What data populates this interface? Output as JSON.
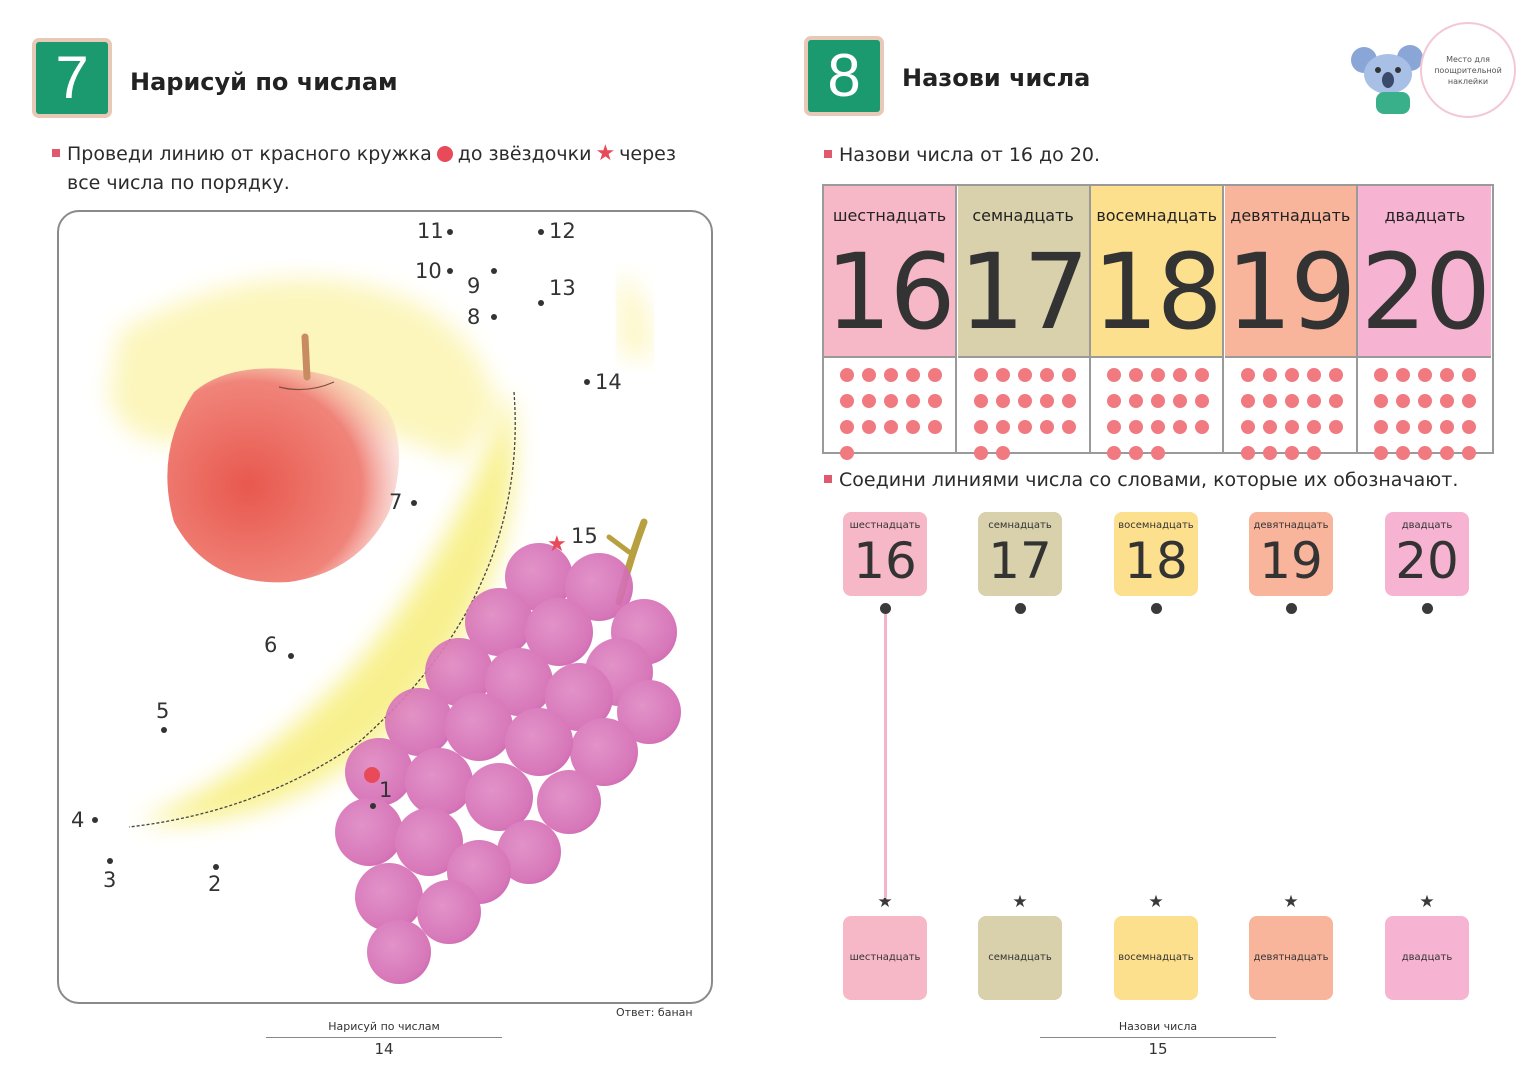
{
  "left_page": {
    "task_number": "7",
    "task_title": "Нарисуй по числам",
    "instruction_part1": "Проведи линию от красного кружка",
    "instruction_part2": "до звёздочки",
    "instruction_part3": "через",
    "instruction_line2": "все числа по порядку.",
    "dot_labels": [
      "1",
      "2",
      "3",
      "4",
      "5",
      "6",
      "7",
      "8",
      "9",
      "10",
      "11",
      "12",
      "13",
      "14",
      "15"
    ],
    "answer": "Ответ: банан",
    "footer_title": "Нарисуй по числам",
    "page_number": "14"
  },
  "right_page": {
    "task_number": "8",
    "task_title": "Назови числа",
    "instruction1": "Назови числа от 16 до 20.",
    "instruction2": "Соедини линиями числа со словами, которые их обозначают.",
    "sticker_text": "Место для поощрительной наклейки",
    "numbers": [
      {
        "word": "шестнадцать",
        "value": "16",
        "dots": 16,
        "color": "#f6b8c6"
      },
      {
        "word": "семнадцать",
        "value": "17",
        "dots": 17,
        "color": "#d9d0ac"
      },
      {
        "word": "восемнадцать",
        "value": "18",
        "dots": 18,
        "color": "#fde08e"
      },
      {
        "word": "девятнадцать",
        "value": "19",
        "dots": 19,
        "color": "#f9b49c"
      },
      {
        "word": "двадцать",
        "value": "20",
        "dots": 20,
        "color": "#f6b4d2"
      }
    ],
    "top_cards": [
      {
        "word": "шестнадцать",
        "value": "16"
      },
      {
        "word": "семнадцать",
        "value": "17"
      },
      {
        "word": "восемнадцать",
        "value": "18"
      },
      {
        "word": "девятнадцать",
        "value": "19"
      },
      {
        "word": "двадцать",
        "value": "20"
      }
    ],
    "bottom_cards": [
      "шестнадцать",
      "семнадцать",
      "восемнадцать",
      "девятнадцать",
      "двадцать"
    ],
    "footer_title": "Назови числа",
    "page_number": "15"
  }
}
